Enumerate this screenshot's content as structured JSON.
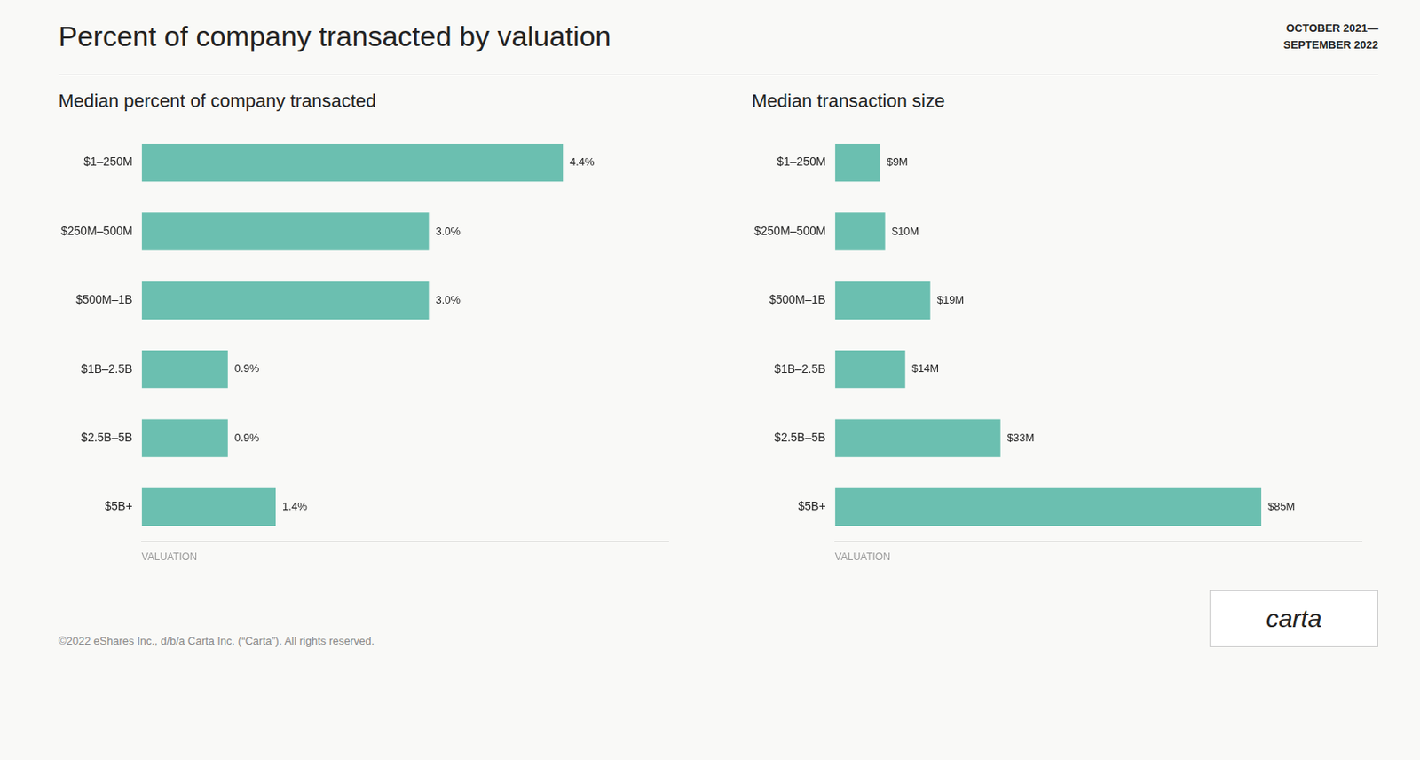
{
  "title": "Percent of company transacted by valuation",
  "annotations": [
    "OCTOBER 2021—\nSEPTEMBER 2022",
    "©2022 eShares Inc., d/b/a Carta Inc. (“Carta”). All rights reserved.",
    "carta"
  ],
  "chart_data": [
    {
      "type": "bar",
      "orientation": "horizontal",
      "subtitle": "Median percent of company transacted",
      "xlabel": "VALUATION",
      "categories": [
        "$1–250M",
        "$250M–500M",
        "$500M–1B",
        "$1B–2.5B",
        "$2.5B–5B",
        "$5B+"
      ],
      "values": [
        4.4,
        3.0,
        3.0,
        0.9,
        0.9,
        1.4
      ],
      "value_labels": [
        "4.4%",
        "3.0%",
        "3.0%",
        "0.9%",
        "0.9%",
        "1.4%"
      ],
      "color": "#6bbfb0",
      "xlim": [
        0,
        5.5
      ],
      "grid": false,
      "data_labels": true,
      "tick_labels": "y"
    },
    {
      "type": "bar",
      "orientation": "horizontal",
      "subtitle": "Median transaction size",
      "xlabel": "VALUATION",
      "categories": [
        "$1–250M",
        "$250M–500M",
        "$500M–1B",
        "$1B–2.5B",
        "$2.5B–5B",
        "$5B+"
      ],
      "values": [
        9,
        10,
        19,
        14,
        33,
        85
      ],
      "value_labels": [
        "$9M",
        "$10M",
        "$19M",
        "$14M",
        "$33M",
        "$85M"
      ],
      "color": "#6bbfb0",
      "xlim": [
        0,
        105
      ],
      "grid": false,
      "data_labels": true,
      "tick_labels": "y"
    }
  ]
}
